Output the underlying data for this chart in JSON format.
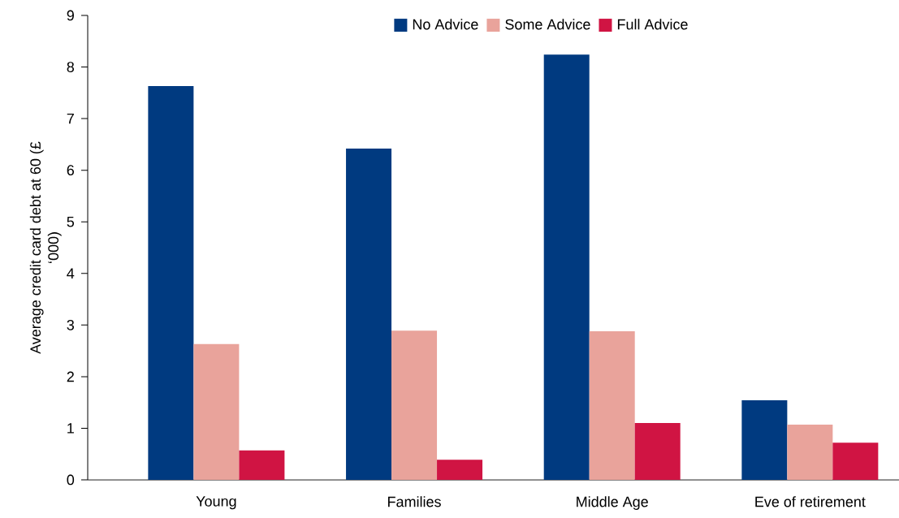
{
  "chart_data": {
    "type": "bar",
    "ylabel": "Average credit card debt at 60 (£ ‘000)",
    "categories": [
      "Young",
      "Families",
      "Middle Age",
      "Eve of retirement"
    ],
    "series": [
      {
        "name": "No Advice",
        "color": "#003a80",
        "values": [
          7.63,
          6.42,
          8.24,
          1.54
        ]
      },
      {
        "name": "Some Advice",
        "color": "#e9a39b",
        "values": [
          2.63,
          2.89,
          2.88,
          1.07
        ]
      },
      {
        "name": "Full Advice",
        "color": "#d01443",
        "values": [
          0.57,
          0.39,
          1.1,
          0.72
        ]
      }
    ],
    "ylim": [
      0,
      9
    ],
    "yticks": [
      0,
      1,
      2,
      3,
      4,
      5,
      6,
      7,
      8,
      9
    ],
    "legend": "top",
    "grid": false
  }
}
